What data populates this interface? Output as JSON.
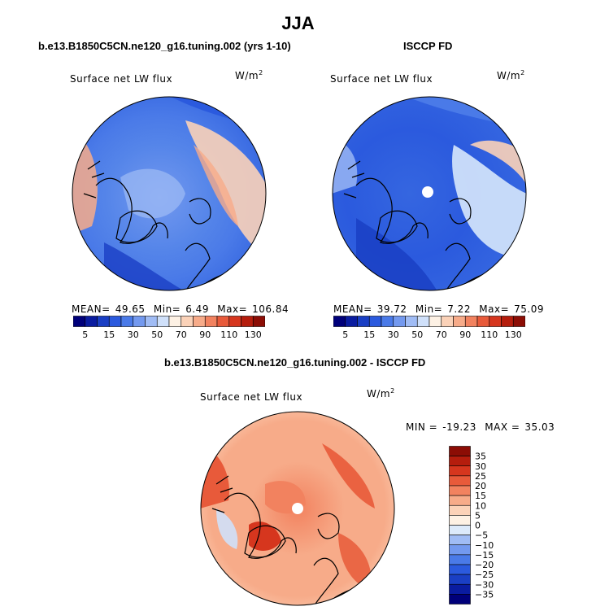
{
  "title": "JJA",
  "panels": [
    {
      "subtitle": "b.e13.B1850C5CN.ne120_g16.tuning.002 (yrs 1-10)",
      "variable": "Surface net LW flux",
      "units": "W/m",
      "units_exp": "2",
      "stats": {
        "mean_label": "MEAN=",
        "mean": "49.65",
        "min_label": "Min=",
        "min": "6.49",
        "max_label": "Max=",
        "max": "106.84"
      },
      "mean_value": 49.65
    },
    {
      "subtitle": "ISCCP FD",
      "variable": "Surface net LW flux",
      "units": "W/m",
      "units_exp": "2",
      "stats": {
        "mean_label": "MEAN=",
        "mean": "39.72",
        "min_label": "Min=",
        "min": "7.22",
        "max_label": "Max=",
        "max": "75.09"
      },
      "mean_value": 39.72
    },
    {
      "subtitle": "b.e13.B1850C5CN.ne120_g16.tuning.002 - ISCCP FD",
      "variable": "Surface net LW flux",
      "units": "W/m",
      "units_exp": "2",
      "stats": {
        "min_label": "MIN =",
        "min": "-19.23",
        "max_label": "MAX =",
        "max": "35.03"
      }
    }
  ],
  "colorbar_abs": {
    "labels": [
      "5",
      "15",
      "30",
      "50",
      "70",
      "90",
      "110",
      "130"
    ],
    "colors": [
      "#00007a",
      "#0a1ca0",
      "#1a3fc4",
      "#2b5ade",
      "#4a7ae8",
      "#7399ef",
      "#a0bcf5",
      "#cfe0fa",
      "#fdf1e4",
      "#fbd2b8",
      "#f7ab89",
      "#f2825f",
      "#e85a3a",
      "#d6361e",
      "#b51d0d",
      "#8c0d05"
    ]
  },
  "colorbar_diff": {
    "labels": [
      "35",
      "30",
      "25",
      "20",
      "15",
      "10",
      "5",
      "0",
      "−5",
      "−10",
      "−15",
      "−20",
      "−25",
      "−30",
      "−35"
    ],
    "colors": [
      "#8c0d05",
      "#b51d0d",
      "#d6361e",
      "#e85a3a",
      "#f2825f",
      "#f7ab89",
      "#fbd2b8",
      "#fdf1e4",
      "#dceafb",
      "#a0bcf5",
      "#7399ef",
      "#4a7ae8",
      "#2b5ade",
      "#1a3fc4",
      "#0a1ca0",
      "#00007a"
    ]
  }
}
